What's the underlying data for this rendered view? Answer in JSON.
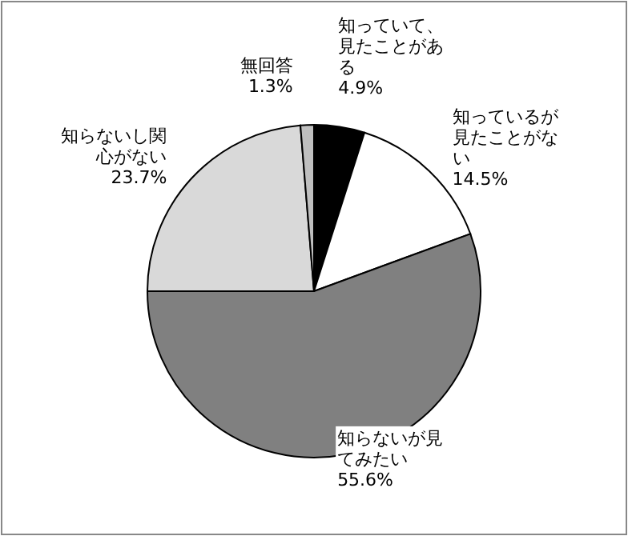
{
  "chart_data": {
    "type": "pie",
    "categories": [
      "知っていて、見たことがある",
      "知っているが見たことがない",
      "知らないが見てみたい",
      "知らないし関心がない",
      "無回答"
    ],
    "values": [
      4.9,
      14.5,
      55.6,
      23.7,
      1.3
    ],
    "value_labels": [
      "4.9%",
      "14.5%",
      "55.6%",
      "23.7%",
      "1.3%"
    ],
    "colors": [
      "#000000",
      "#ffffff",
      "#808080",
      "#d9d9d9",
      "#bfbfbf"
    ]
  }
}
